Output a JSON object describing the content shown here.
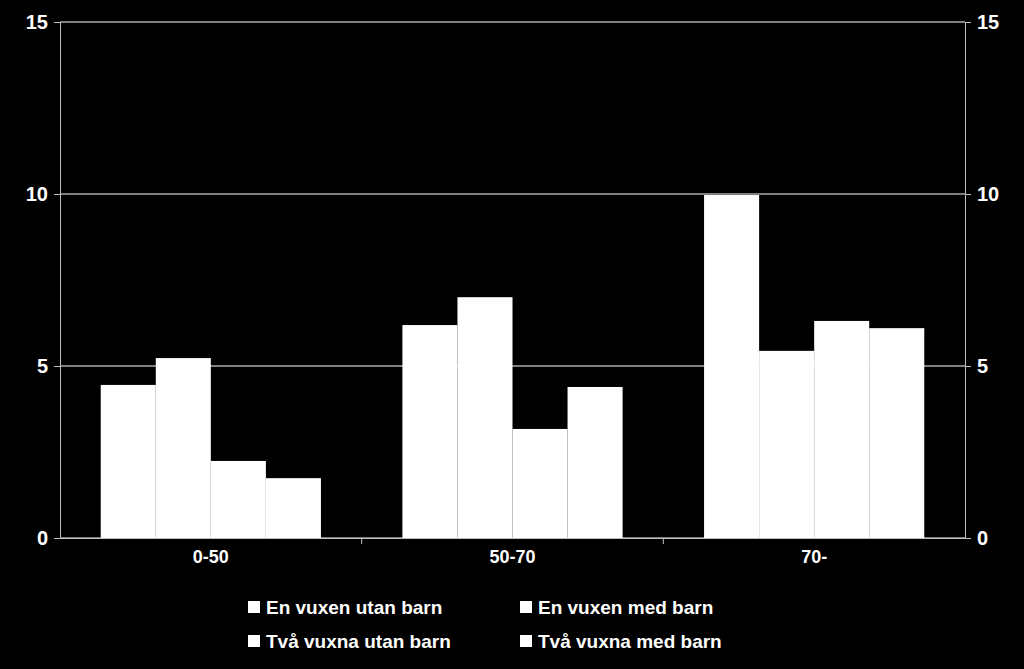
{
  "chart_data": {
    "type": "bar",
    "categories": [
      "0-50",
      "50-70",
      "70-"
    ],
    "series": [
      {
        "name": "En vuxen utan barn",
        "color": "#ffffff",
        "values": [
          4.45,
          6.19,
          9.97
        ]
      },
      {
        "name": "En vuxen med barn",
        "color": "#ffffff",
        "values": [
          5.23,
          7.0,
          5.44
        ]
      },
      {
        "name": "Två vuxna utan barn",
        "color": "#ffffff",
        "values": [
          2.24,
          3.17,
          6.31
        ]
      },
      {
        "name": "Två vuxna med barn",
        "color": "#ffffff",
        "values": [
          1.74,
          4.39,
          6.1
        ]
      }
    ],
    "ylim": [
      0,
      15
    ],
    "yticks": [
      0,
      5,
      10,
      15
    ],
    "y2lim": [
      0,
      15
    ],
    "y2ticks": [
      0,
      5,
      10,
      15
    ],
    "grid": true,
    "legend": "bottom"
  }
}
